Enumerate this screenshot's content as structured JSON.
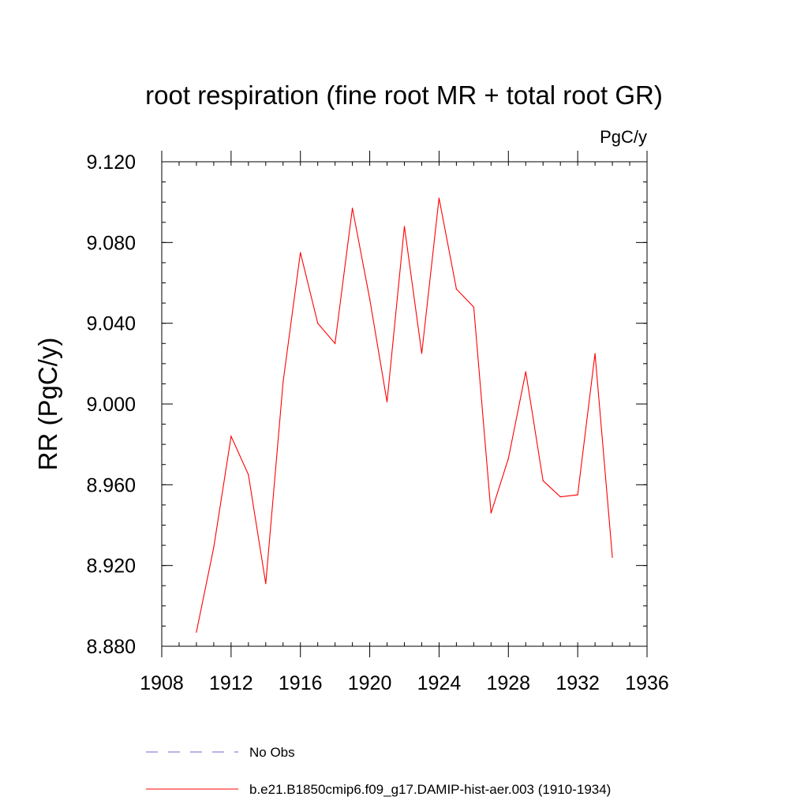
{
  "chart_data": {
    "type": "line",
    "title": "root respiration (fine root MR + total root GR)",
    "units_label": "PgC/y",
    "ylabel": "RR  (PgC/y)",
    "xlabel": "",
    "xlim": [
      1908,
      1936
    ],
    "ylim": [
      8.88,
      9.12
    ],
    "x_ticks": [
      1908,
      1912,
      1916,
      1920,
      1924,
      1928,
      1932,
      1936
    ],
    "x_tick_labels": [
      "1908",
      "1912",
      "1916",
      "1920",
      "1924",
      "1928",
      "1932",
      "1936"
    ],
    "y_ticks": [
      8.88,
      8.92,
      8.96,
      9.0,
      9.04,
      9.08,
      9.12
    ],
    "y_tick_labels": [
      "8.880",
      "8.920",
      "8.960",
      "9.000",
      "9.040",
      "9.080",
      "9.120"
    ],
    "grid": false,
    "legend_position": "bottom",
    "series": [
      {
        "name": "b.e21.B1850cmip6.f09_g17.DAMIP-hist-aer.003 (1910-1934)",
        "color": "#ff0000",
        "style": "solid",
        "x": [
          1910,
          1911,
          1912,
          1913,
          1914,
          1915,
          1916,
          1917,
          1918,
          1919,
          1920,
          1921,
          1922,
          1923,
          1924,
          1925,
          1926,
          1927,
          1928,
          1929,
          1930,
          1931,
          1932,
          1933,
          1934
        ],
        "y": [
          8.887,
          8.929,
          8.984,
          8.965,
          8.911,
          9.011,
          9.075,
          9.04,
          9.03,
          9.097,
          9.052,
          9.001,
          9.088,
          9.025,
          9.102,
          9.057,
          9.048,
          8.946,
          8.973,
          9.016,
          8.962,
          8.954,
          8.955,
          9.025,
          8.924
        ]
      }
    ],
    "legend": [
      {
        "label": "No Obs",
        "color": "#6a6acd",
        "style": "dashed"
      },
      {
        "label": "b.e21.B1850cmip6.f09_g17.DAMIP-hist-aer.003 (1910-1934)",
        "color": "#ff0000",
        "style": "solid"
      }
    ]
  }
}
